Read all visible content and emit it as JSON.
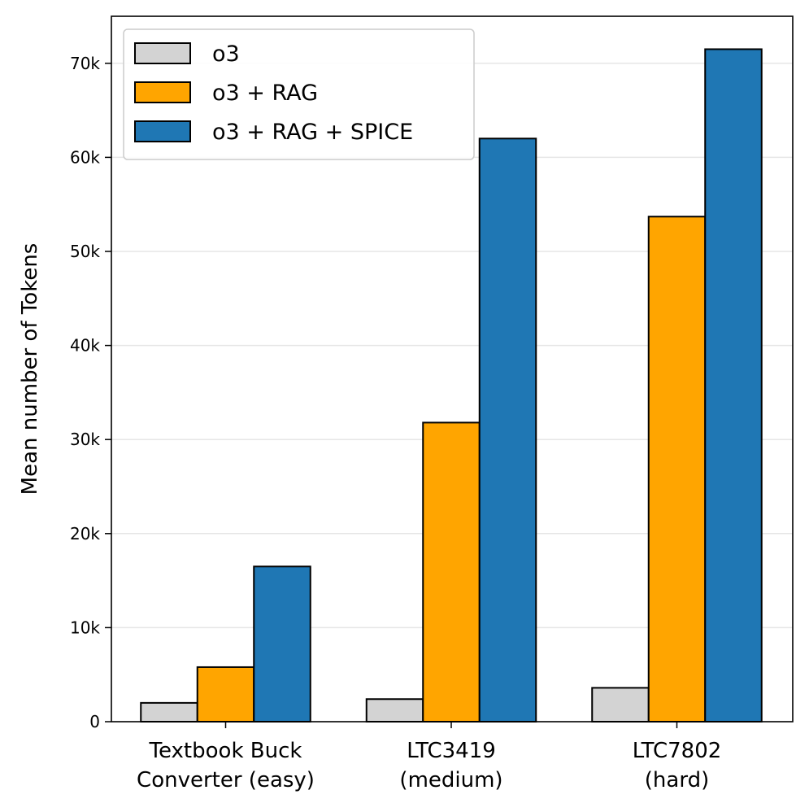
{
  "chart_data": {
    "type": "bar",
    "title": "",
    "xlabel": "",
    "ylabel": "Mean number of Tokens",
    "ylim": [
      0,
      75000
    ],
    "yticks": [
      0,
      10000,
      20000,
      30000,
      40000,
      50000,
      60000,
      70000
    ],
    "ytick_labels": [
      "0",
      "10k",
      "20k",
      "30k",
      "40k",
      "50k",
      "60k",
      "70k"
    ],
    "grid": "y",
    "legend_position": "top-left",
    "categories": [
      {
        "line1": "Textbook Buck",
        "line2": "Converter (easy)"
      },
      {
        "line1": "LTC3419",
        "line2": "(medium)"
      },
      {
        "line1": "LTC7802",
        "line2": "(hard)"
      }
    ],
    "series": [
      {
        "name": "o3",
        "color": "#d3d3d3",
        "values": [
          2000,
          2400,
          3600
        ]
      },
      {
        "name": "o3 + RAG",
        "color": "#ffa500",
        "values": [
          5800,
          31800,
          53700
        ]
      },
      {
        "name": "o3 + RAG + SPICE",
        "color": "#1f77b4",
        "values": [
          16500,
          62000,
          71500
        ]
      }
    ]
  }
}
